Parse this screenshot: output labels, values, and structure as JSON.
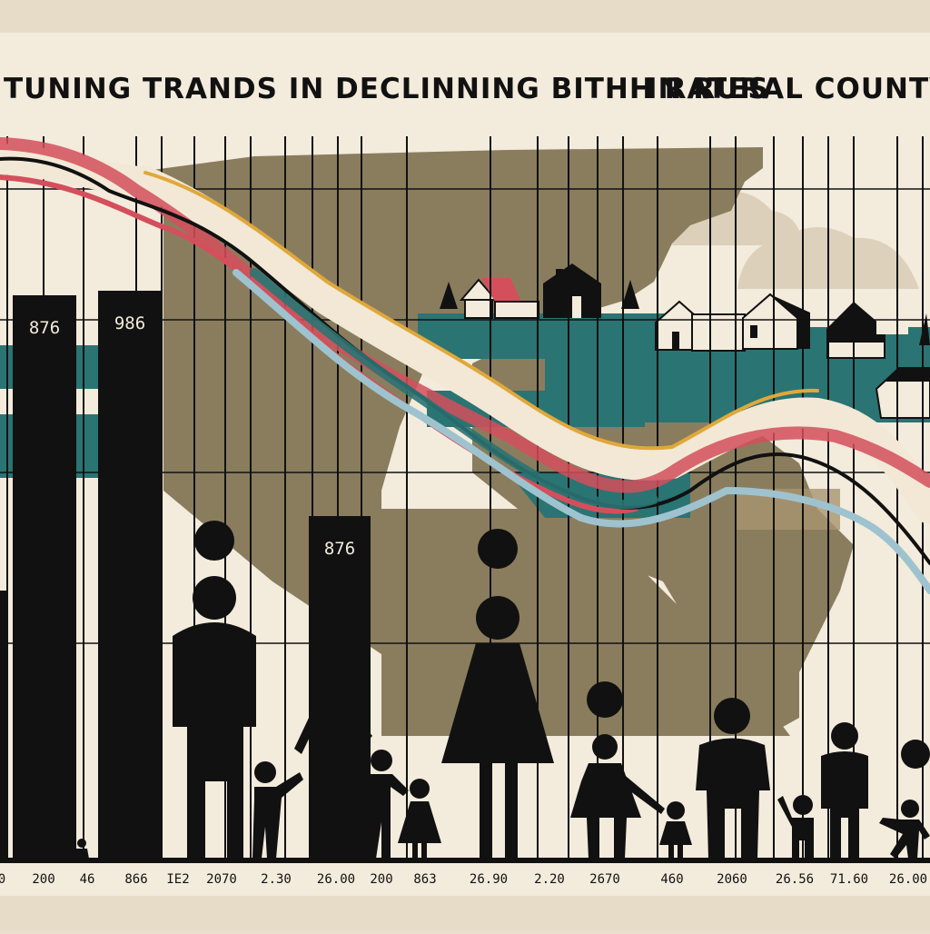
{
  "title": {
    "left": "TUNING TRANDS IN  DECLINNING BITHH RATES",
    "right": "IN RURAL COUNTYS"
  },
  "colors": {
    "background": "#f3ebdc",
    "map": "#8a7d5e",
    "teal": "#2a7473",
    "black": "#111111",
    "red": "#d44f5c",
    "gold": "#e0a83a",
    "lightblue": "#9ec3cf",
    "cream": "#f2e8d5"
  },
  "chart_data": {
    "type": "bar",
    "bars": [
      {
        "label": "876",
        "value": 876
      },
      {
        "label": "986",
        "value": 986
      },
      {
        "label": "876",
        "value": 876
      }
    ],
    "x_tick_labels": [
      "0",
      "200",
      "46",
      "866",
      "IE2",
      "2070",
      "2.30",
      "26.00",
      "200",
      "863",
      "26.90",
      "2.20",
      "2670",
      "460",
      "2060",
      "26.56",
      "71.60",
      "26.00"
    ],
    "trend_lines": [
      "black-line",
      "red-band",
      "gold-band",
      "lightblue-band",
      "teal-band"
    ]
  }
}
